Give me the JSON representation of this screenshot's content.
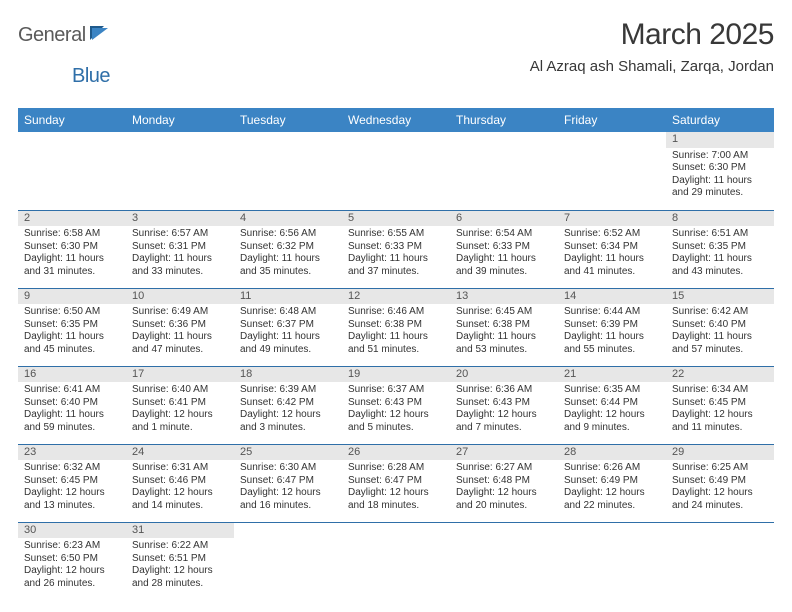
{
  "logo": {
    "text1": "General",
    "text2": "Blue",
    "color_gray": "#5a5a5a",
    "color_blue": "#2f6fa8"
  },
  "title": "March 2025",
  "location": "Al Azraq ash Shamali, Zarqa, Jordan",
  "weekday_header_bg": "#3b84c4",
  "weekday_header_fg": "#ffffff",
  "daynum_bg": "#e7e7e7",
  "row_border_color": "#2f6fa8",
  "weekdays": [
    "Sunday",
    "Monday",
    "Tuesday",
    "Wednesday",
    "Thursday",
    "Friday",
    "Saturday"
  ],
  "weeks": [
    [
      null,
      null,
      null,
      null,
      null,
      null,
      {
        "n": "1",
        "sr": "Sunrise: 7:00 AM",
        "ss": "Sunset: 6:30 PM",
        "dl": "Daylight: 11 hours and 29 minutes."
      }
    ],
    [
      {
        "n": "2",
        "sr": "Sunrise: 6:58 AM",
        "ss": "Sunset: 6:30 PM",
        "dl": "Daylight: 11 hours and 31 minutes."
      },
      {
        "n": "3",
        "sr": "Sunrise: 6:57 AM",
        "ss": "Sunset: 6:31 PM",
        "dl": "Daylight: 11 hours and 33 minutes."
      },
      {
        "n": "4",
        "sr": "Sunrise: 6:56 AM",
        "ss": "Sunset: 6:32 PM",
        "dl": "Daylight: 11 hours and 35 minutes."
      },
      {
        "n": "5",
        "sr": "Sunrise: 6:55 AM",
        "ss": "Sunset: 6:33 PM",
        "dl": "Daylight: 11 hours and 37 minutes."
      },
      {
        "n": "6",
        "sr": "Sunrise: 6:54 AM",
        "ss": "Sunset: 6:33 PM",
        "dl": "Daylight: 11 hours and 39 minutes."
      },
      {
        "n": "7",
        "sr": "Sunrise: 6:52 AM",
        "ss": "Sunset: 6:34 PM",
        "dl": "Daylight: 11 hours and 41 minutes."
      },
      {
        "n": "8",
        "sr": "Sunrise: 6:51 AM",
        "ss": "Sunset: 6:35 PM",
        "dl": "Daylight: 11 hours and 43 minutes."
      }
    ],
    [
      {
        "n": "9",
        "sr": "Sunrise: 6:50 AM",
        "ss": "Sunset: 6:35 PM",
        "dl": "Daylight: 11 hours and 45 minutes."
      },
      {
        "n": "10",
        "sr": "Sunrise: 6:49 AM",
        "ss": "Sunset: 6:36 PM",
        "dl": "Daylight: 11 hours and 47 minutes."
      },
      {
        "n": "11",
        "sr": "Sunrise: 6:48 AM",
        "ss": "Sunset: 6:37 PM",
        "dl": "Daylight: 11 hours and 49 minutes."
      },
      {
        "n": "12",
        "sr": "Sunrise: 6:46 AM",
        "ss": "Sunset: 6:38 PM",
        "dl": "Daylight: 11 hours and 51 minutes."
      },
      {
        "n": "13",
        "sr": "Sunrise: 6:45 AM",
        "ss": "Sunset: 6:38 PM",
        "dl": "Daylight: 11 hours and 53 minutes."
      },
      {
        "n": "14",
        "sr": "Sunrise: 6:44 AM",
        "ss": "Sunset: 6:39 PM",
        "dl": "Daylight: 11 hours and 55 minutes."
      },
      {
        "n": "15",
        "sr": "Sunrise: 6:42 AM",
        "ss": "Sunset: 6:40 PM",
        "dl": "Daylight: 11 hours and 57 minutes."
      }
    ],
    [
      {
        "n": "16",
        "sr": "Sunrise: 6:41 AM",
        "ss": "Sunset: 6:40 PM",
        "dl": "Daylight: 11 hours and 59 minutes."
      },
      {
        "n": "17",
        "sr": "Sunrise: 6:40 AM",
        "ss": "Sunset: 6:41 PM",
        "dl": "Daylight: 12 hours and 1 minute."
      },
      {
        "n": "18",
        "sr": "Sunrise: 6:39 AM",
        "ss": "Sunset: 6:42 PM",
        "dl": "Daylight: 12 hours and 3 minutes."
      },
      {
        "n": "19",
        "sr": "Sunrise: 6:37 AM",
        "ss": "Sunset: 6:43 PM",
        "dl": "Daylight: 12 hours and 5 minutes."
      },
      {
        "n": "20",
        "sr": "Sunrise: 6:36 AM",
        "ss": "Sunset: 6:43 PM",
        "dl": "Daylight: 12 hours and 7 minutes."
      },
      {
        "n": "21",
        "sr": "Sunrise: 6:35 AM",
        "ss": "Sunset: 6:44 PM",
        "dl": "Daylight: 12 hours and 9 minutes."
      },
      {
        "n": "22",
        "sr": "Sunrise: 6:34 AM",
        "ss": "Sunset: 6:45 PM",
        "dl": "Daylight: 12 hours and 11 minutes."
      }
    ],
    [
      {
        "n": "23",
        "sr": "Sunrise: 6:32 AM",
        "ss": "Sunset: 6:45 PM",
        "dl": "Daylight: 12 hours and 13 minutes."
      },
      {
        "n": "24",
        "sr": "Sunrise: 6:31 AM",
        "ss": "Sunset: 6:46 PM",
        "dl": "Daylight: 12 hours and 14 minutes."
      },
      {
        "n": "25",
        "sr": "Sunrise: 6:30 AM",
        "ss": "Sunset: 6:47 PM",
        "dl": "Daylight: 12 hours and 16 minutes."
      },
      {
        "n": "26",
        "sr": "Sunrise: 6:28 AM",
        "ss": "Sunset: 6:47 PM",
        "dl": "Daylight: 12 hours and 18 minutes."
      },
      {
        "n": "27",
        "sr": "Sunrise: 6:27 AM",
        "ss": "Sunset: 6:48 PM",
        "dl": "Daylight: 12 hours and 20 minutes."
      },
      {
        "n": "28",
        "sr": "Sunrise: 6:26 AM",
        "ss": "Sunset: 6:49 PM",
        "dl": "Daylight: 12 hours and 22 minutes."
      },
      {
        "n": "29",
        "sr": "Sunrise: 6:25 AM",
        "ss": "Sunset: 6:49 PM",
        "dl": "Daylight: 12 hours and 24 minutes."
      }
    ],
    [
      {
        "n": "30",
        "sr": "Sunrise: 6:23 AM",
        "ss": "Sunset: 6:50 PM",
        "dl": "Daylight: 12 hours and 26 minutes."
      },
      {
        "n": "31",
        "sr": "Sunrise: 6:22 AM",
        "ss": "Sunset: 6:51 PM",
        "dl": "Daylight: 12 hours and 28 minutes."
      },
      null,
      null,
      null,
      null,
      null
    ]
  ]
}
